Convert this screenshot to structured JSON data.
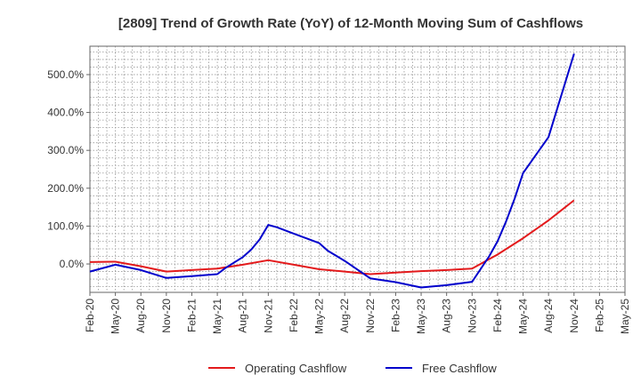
{
  "chart_data": {
    "type": "line",
    "title": "[2809]  Trend of Growth Rate (YoY) of 12-Month Moving Sum of Cashflows",
    "xlabel": "",
    "ylabel": "",
    "x_tick_labels": [
      "Feb-20",
      "May-20",
      "Aug-20",
      "Nov-20",
      "Feb-21",
      "May-21",
      "Aug-21",
      "Nov-21",
      "Feb-22",
      "May-22",
      "Aug-22",
      "Nov-22",
      "Feb-23",
      "May-23",
      "Aug-23",
      "Nov-23",
      "Feb-24",
      "May-24",
      "Aug-24",
      "Nov-24",
      "Feb-25",
      "May-25"
    ],
    "y_tick_labels": [
      "0.0%",
      "100.0%",
      "200.0%",
      "300.0%",
      "400.0%",
      "500.0%"
    ],
    "y_ticks": [
      0,
      100,
      200,
      300,
      400,
      500
    ],
    "ylim": [
      -75,
      575
    ],
    "grid": true,
    "legend_position": "bottom",
    "series": [
      {
        "name": "Operating Cashflow",
        "color": "#e31a1c",
        "points": [
          [
            "Feb-20",
            5
          ],
          [
            "May-20",
            6
          ],
          [
            "Aug-20",
            -6
          ],
          [
            "Nov-20",
            -20
          ],
          [
            "Feb-21",
            -16
          ],
          [
            "May-21",
            -12
          ],
          [
            "Aug-21",
            -2
          ],
          [
            "Nov-21",
            10
          ],
          [
            "Feb-22",
            -2
          ],
          [
            "May-22",
            -14
          ],
          [
            "Aug-22",
            -20
          ],
          [
            "Nov-22",
            -27
          ],
          [
            "Feb-23",
            -23
          ],
          [
            "May-23",
            -19
          ],
          [
            "Aug-23",
            -16
          ],
          [
            "Nov-23",
            -12
          ],
          [
            "Feb-24",
            25
          ],
          [
            "May-24",
            68
          ],
          [
            "Aug-24",
            115
          ],
          [
            "Nov-24",
            168
          ]
        ]
      },
      {
        "name": "Free Cashflow",
        "color": "#0000cc",
        "points": [
          [
            "Feb-20",
            -20
          ],
          [
            "May-20",
            -2
          ],
          [
            "Aug-20",
            -16
          ],
          [
            "Nov-20",
            -37
          ],
          [
            "Feb-21",
            -32
          ],
          [
            "May-21",
            -27
          ],
          [
            "Jun-21",
            -10
          ],
          [
            "Jul-21",
            4
          ],
          [
            "Aug-21",
            18
          ],
          [
            "Sep-21",
            38
          ],
          [
            "Oct-21",
            65
          ],
          [
            "Nov-21",
            103
          ],
          [
            "Dec-21",
            97
          ],
          [
            "Feb-22",
            80
          ],
          [
            "May-22",
            55
          ],
          [
            "Jun-22",
            35
          ],
          [
            "Aug-22",
            8
          ],
          [
            "Nov-22",
            -38
          ],
          [
            "Feb-23",
            -48
          ],
          [
            "May-23",
            -62
          ],
          [
            "Aug-23",
            -56
          ],
          [
            "Nov-23",
            -47
          ],
          [
            "Jan-24",
            20
          ],
          [
            "Feb-24",
            60
          ],
          [
            "Mar-24",
            112
          ],
          [
            "Apr-24",
            172
          ],
          [
            "May-24",
            240
          ],
          [
            "Aug-24",
            335
          ],
          [
            "Nov-24",
            555
          ]
        ]
      }
    ]
  }
}
